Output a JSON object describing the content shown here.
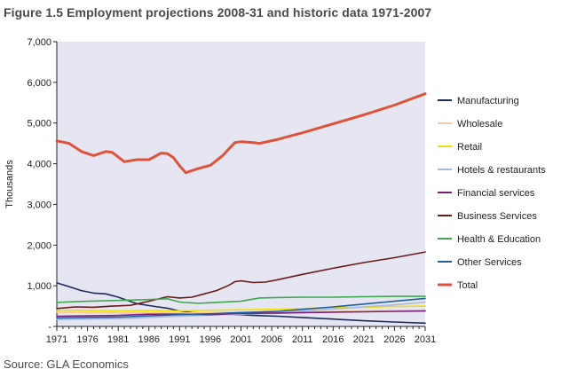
{
  "title": "Figure 1.5 Employment projections 2008-31 and historic data 1971-2007",
  "source": "Source: GLA Economics",
  "chart_data": {
    "type": "line",
    "ylabel": "Thousands",
    "xlim": [
      1971,
      2031
    ],
    "ylim": [
      0,
      7000
    ],
    "yticks": [
      0,
      1000,
      2000,
      3000,
      4000,
      5000,
      6000,
      7000
    ],
    "ytick_labels": [
      "-",
      "1,000",
      "2,000",
      "3,000",
      "4,000",
      "5,000",
      "6,000",
      "7,000"
    ],
    "xticks": [
      1971,
      1976,
      1981,
      1986,
      1991,
      1996,
      2001,
      2006,
      2011,
      2016,
      2021,
      2026,
      2031
    ],
    "xtick_labels": [
      "1971",
      "1976",
      "1981",
      "1986",
      "1991",
      "1996",
      "2001",
      "2006",
      "2011",
      "2016",
      "2021",
      "2026",
      "2031"
    ],
    "plot_background": "#e6e6f2",
    "grid": false,
    "legend_position": "right",
    "series": [
      {
        "name": "Manufacturing",
        "color": "#1f2a5c",
        "x": [
          1971,
          1973,
          1975,
          1977,
          1979,
          1981,
          1984,
          1987,
          1989,
          1991,
          1993,
          1995,
          1997,
          1999,
          2001,
          2003,
          2007,
          2011,
          2016,
          2021,
          2026,
          2031
        ],
        "y": [
          1070,
          980,
          880,
          820,
          800,
          720,
          560,
          490,
          450,
          380,
          340,
          320,
          310,
          300,
          290,
          270,
          250,
          220,
          180,
          140,
          110,
          80
        ]
      },
      {
        "name": "Wholesale",
        "color": "#f2c9a0",
        "x": [
          1971,
          1976,
          1981,
          1986,
          1991,
          1996,
          2001,
          2007,
          2011,
          2016,
          2021,
          2026,
          2031
        ],
        "y": [
          350,
          340,
          330,
          340,
          330,
          340,
          350,
          360,
          360,
          370,
          380,
          390,
          400
        ]
      },
      {
        "name": "Retail",
        "color": "#f0e000",
        "x": [
          1971,
          1976,
          1981,
          1986,
          1991,
          1996,
          2001,
          2007,
          2011,
          2016,
          2021,
          2026,
          2031
        ],
        "y": [
          400,
          390,
          380,
          390,
          380,
          400,
          410,
          420,
          440,
          460,
          470,
          490,
          500
        ]
      },
      {
        "name": "Hotels & restaurants",
        "color": "#a9b9e0",
        "x": [
          1971,
          1976,
          1981,
          1986,
          1991,
          1996,
          2001,
          2007,
          2011,
          2016,
          2021,
          2026,
          2031
        ],
        "y": [
          170,
          180,
          190,
          220,
          250,
          280,
          300,
          330,
          380,
          430,
          480,
          530,
          600
        ]
      },
      {
        "name": "Financial services",
        "color": "#7a1f7a",
        "x": [
          1971,
          1976,
          1981,
          1986,
          1991,
          1996,
          2001,
          2007,
          2011,
          2016,
          2021,
          2026,
          2031
        ],
        "y": [
          250,
          260,
          270,
          300,
          300,
          290,
          320,
          330,
          340,
          350,
          360,
          370,
          380
        ]
      },
      {
        "name": "Business Services",
        "color": "#6b1a1a",
        "x": [
          1971,
          1974,
          1977,
          1980,
          1983,
          1986,
          1989,
          1991,
          1993,
          1995,
          1997,
          1999,
          2000,
          2001,
          2003,
          2005,
          2007,
          2011,
          2016,
          2021,
          2026,
          2031
        ],
        "y": [
          440,
          480,
          470,
          500,
          520,
          620,
          730,
          700,
          720,
          800,
          880,
          1010,
          1100,
          1120,
          1080,
          1090,
          1150,
          1280,
          1430,
          1570,
          1690,
          1830
        ]
      },
      {
        "name": "Health & Education",
        "color": "#3fa84f",
        "x": [
          1971,
          1976,
          1981,
          1986,
          1989,
          1991,
          1994,
          1997,
          2001,
          2004,
          2007,
          2011,
          2016,
          2021,
          2026,
          2031
        ],
        "y": [
          590,
          620,
          640,
          660,
          680,
          600,
          570,
          590,
          620,
          700,
          710,
          720,
          720,
          730,
          740,
          740
        ]
      },
      {
        "name": "Other Services",
        "color": "#1f5fa0",
        "x": [
          1971,
          1976,
          1981,
          1986,
          1991,
          1996,
          2001,
          2007,
          2011,
          2016,
          2021,
          2026,
          2031
        ],
        "y": [
          210,
          220,
          230,
          260,
          290,
          310,
          340,
          370,
          420,
          480,
          550,
          620,
          690
        ]
      },
      {
        "name": "Total",
        "color": "#e0533a",
        "x": [
          1971,
          1973,
          1975,
          1977,
          1979,
          1980,
          1982,
          1984,
          1986,
          1988,
          1989,
          1990,
          1991,
          1992,
          1994,
          1996,
          1998,
          2000,
          2001,
          2003,
          2004,
          2007,
          2011,
          2016,
          2021,
          2026,
          2031
        ],
        "y": [
          4560,
          4500,
          4300,
          4200,
          4300,
          4280,
          4050,
          4100,
          4100,
          4260,
          4250,
          4150,
          3950,
          3780,
          3880,
          3960,
          4200,
          4520,
          4540,
          4520,
          4500,
          4600,
          4760,
          4980,
          5200,
          5440,
          5720
        ]
      }
    ]
  }
}
